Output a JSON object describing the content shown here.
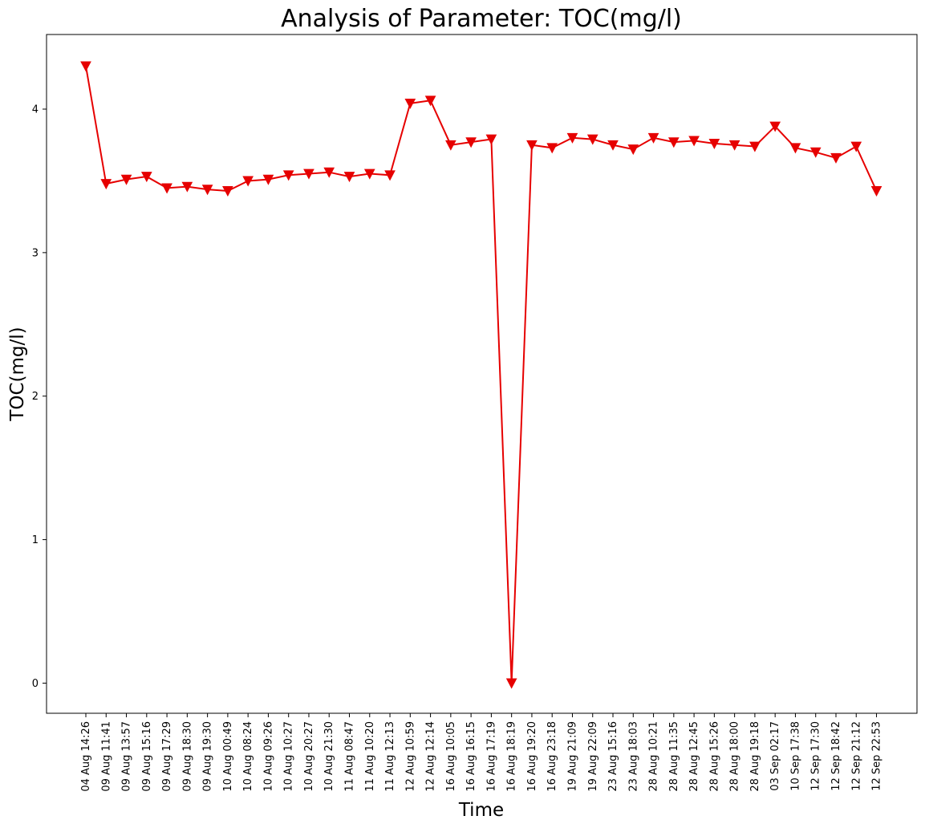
{
  "chart_data": {
    "type": "line",
    "title": "Analysis of Parameter: TOC(mg/l)",
    "xlabel": "Time",
    "ylabel": "TOC(mg/l)",
    "ylim": [
      -0.21,
      4.52
    ],
    "yticks": [
      "0",
      "1",
      "2",
      "3",
      "4"
    ],
    "grid": false,
    "marker": "triangle-down",
    "line_color": "#e60000",
    "categories": [
      "04 Aug 14:26",
      "09 Aug 11:41",
      "09 Aug 13:57",
      "09 Aug 15:16",
      "09 Aug 17:29",
      "09 Aug 18:30",
      "09 Aug 19:30",
      "10 Aug 00:49",
      "10 Aug 08:24",
      "10 Aug 09:26",
      "10 Aug 10:27",
      "10 Aug 20:27",
      "10 Aug 21:30",
      "11 Aug 08:47",
      "11 Aug 10:20",
      "11 Aug 12:13",
      "12 Aug 10:59",
      "12 Aug 12:14",
      "16 Aug 10:05",
      "16 Aug 16:15",
      "16 Aug 17:19",
      "16 Aug 18:19",
      "16 Aug 19:20",
      "16 Aug 23:18",
      "19 Aug 21:09",
      "19 Aug 22:09",
      "23 Aug 15:16",
      "23 Aug 18:03",
      "28 Aug 10:21",
      "28 Aug 11:35",
      "28 Aug 12:45",
      "28 Aug 15:26",
      "28 Aug 18:00",
      "28 Aug 19:18",
      "03 Sep 02:17",
      "10 Sep 17:38",
      "12 Sep 17:30",
      "12 Sep 18:42",
      "12 Sep 21:12",
      "12 Sep 22:53"
    ],
    "values": [
      4.3,
      3.48,
      3.51,
      3.53,
      3.45,
      3.46,
      3.44,
      3.43,
      3.5,
      3.51,
      3.54,
      3.55,
      3.56,
      3.53,
      3.55,
      3.54,
      4.04,
      4.06,
      3.75,
      3.77,
      3.79,
      0.0,
      3.75,
      3.73,
      3.8,
      3.79,
      3.75,
      3.72,
      3.8,
      3.77,
      3.78,
      3.76,
      3.75,
      3.74,
      3.88,
      3.73,
      3.7,
      3.66,
      3.74,
      3.43
    ]
  }
}
